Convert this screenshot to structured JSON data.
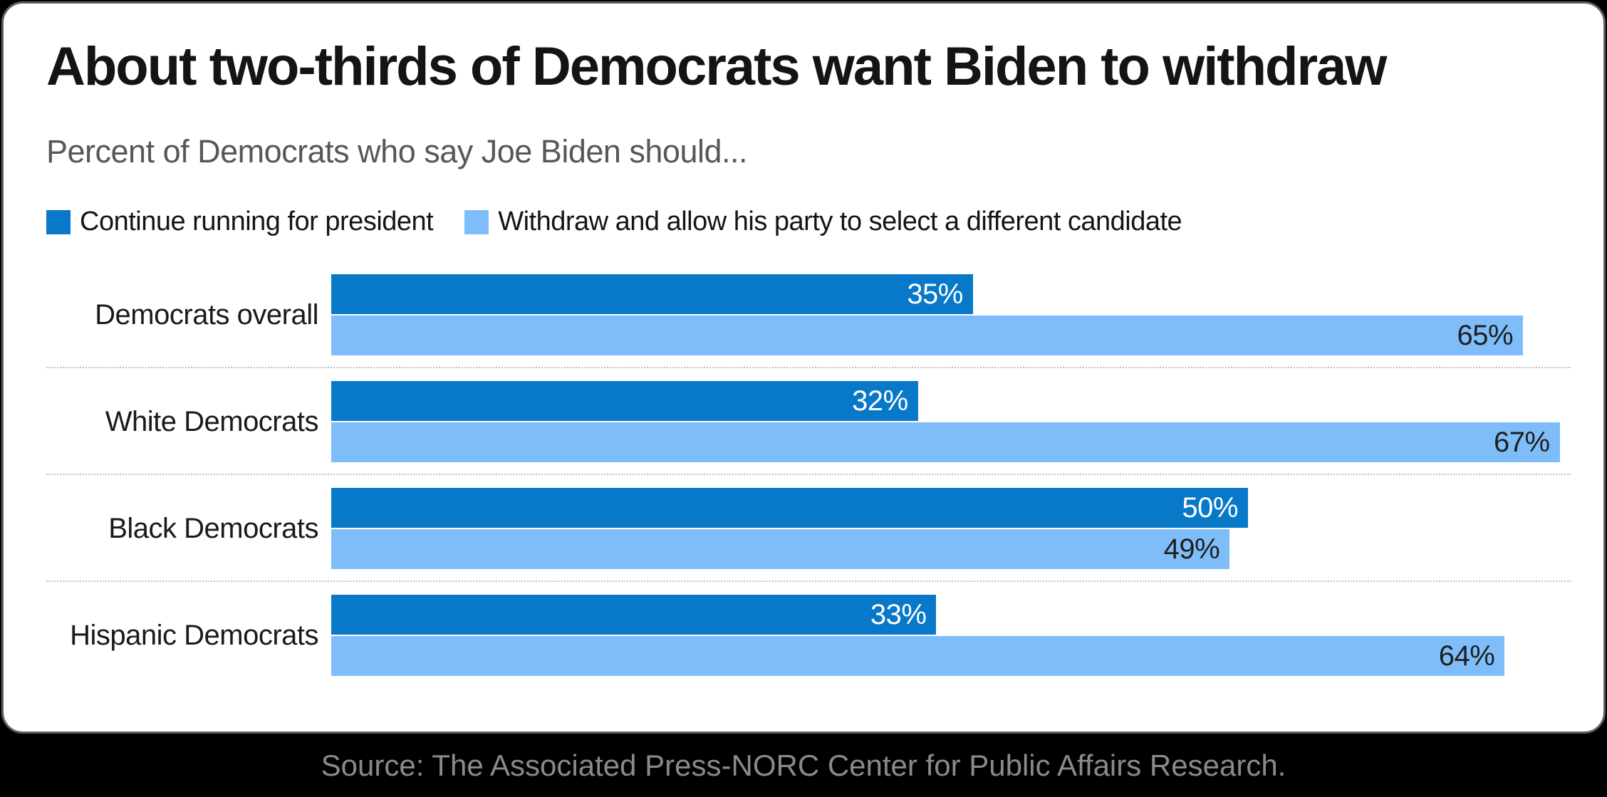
{
  "header": {
    "title": "About two-thirds of Democrats want Biden to withdraw",
    "subtitle": "Percent of Democrats who say Joe Biden should..."
  },
  "chart_data": {
    "type": "bar",
    "orientation": "horizontal",
    "title": "About two-thirds of Democrats want Biden to withdraw",
    "subtitle": "Percent of Democrats who say Joe Biden should...",
    "categories": [
      "Democrats overall",
      "White Democrats",
      "Black Democrats",
      "Hispanic Democrats"
    ],
    "series": [
      {
        "name": "Continue running for president",
        "color": "#0878c8",
        "values": [
          35,
          32,
          50,
          33
        ]
      },
      {
        "name": "Withdraw and allow his party to select a different candidate",
        "color": "#7fbdfa",
        "values": [
          65,
          67,
          49,
          64
        ]
      }
    ],
    "value_suffix": "%",
    "xlim": [
      0,
      67.6
    ],
    "grid": "off",
    "legend_position": "top",
    "value_label_position": "inside-end"
  },
  "footer": {
    "source": "Source: The Associated Press-NORC Center for Public Affairs Research."
  },
  "colors": {
    "continue_bar": "#0878c8",
    "withdraw_bar": "#7fbdfa",
    "background": "#000000",
    "card_background": "#ffffff",
    "card_border": "#606060",
    "title_text": "#141414",
    "subtitle_text": "#575757",
    "category_text": "#1a1a1a",
    "value_on_dark": "#ffffff",
    "value_on_light": "#1f1f1f",
    "row_separator": "#bfbfbf",
    "source_text": "#8a8a8a"
  }
}
